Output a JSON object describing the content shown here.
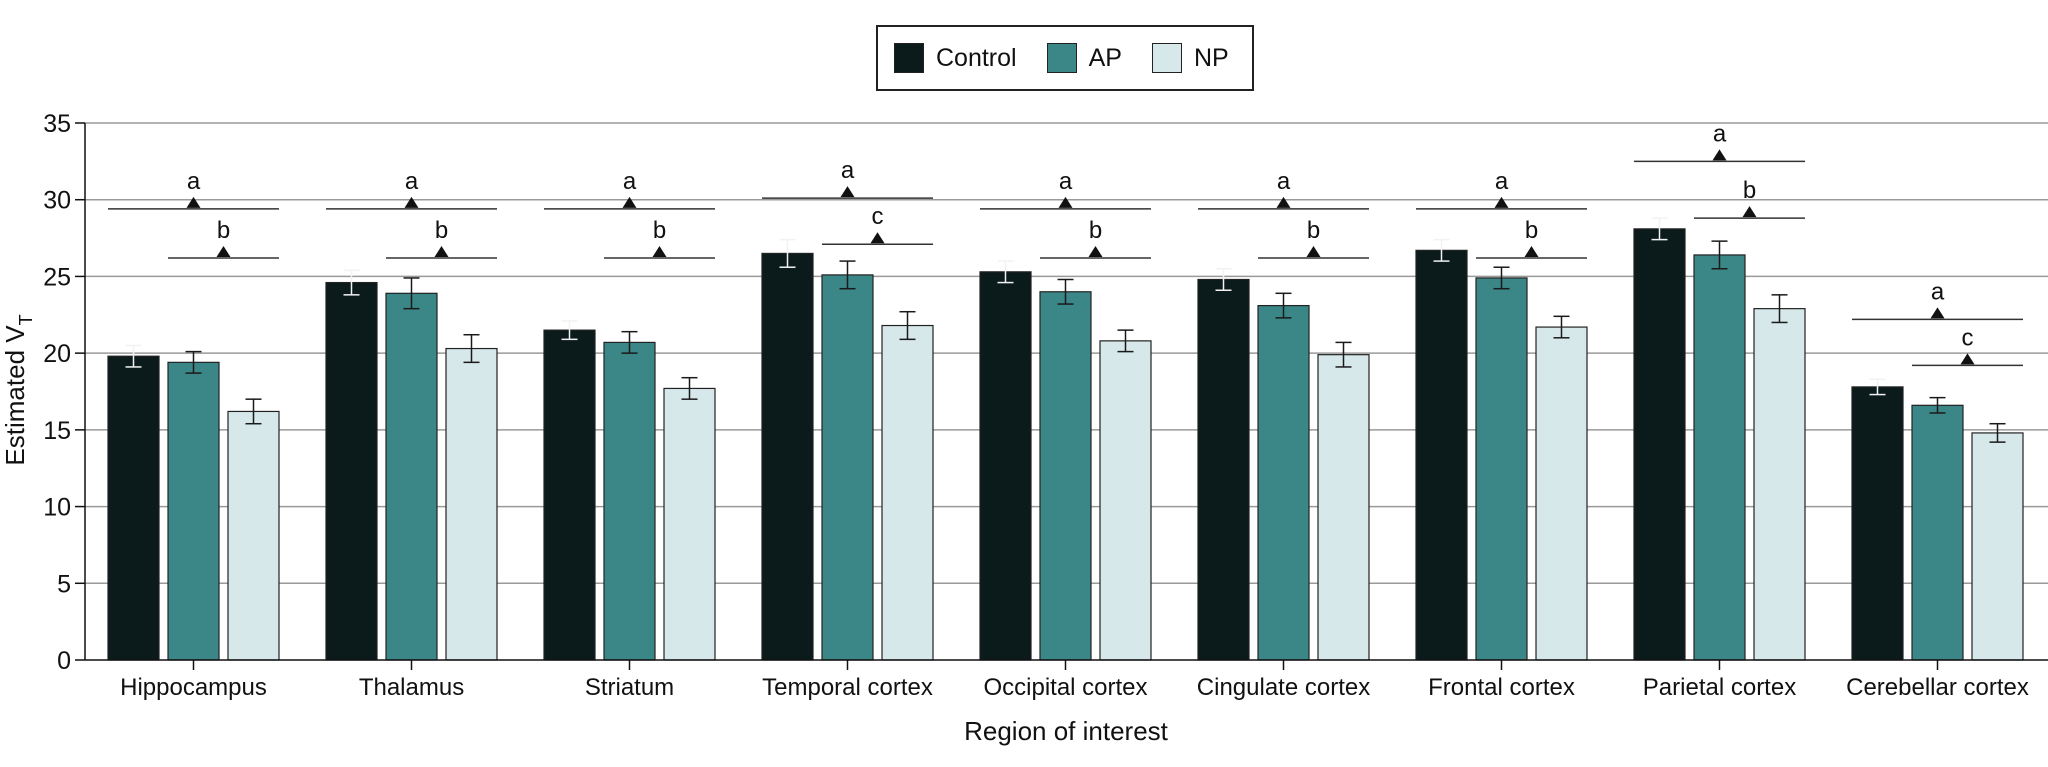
{
  "chart_data": {
    "type": "bar",
    "title": "",
    "xlabel": "Region of interest",
    "ylabel_main": "Estimated V",
    "ylabel_sub": "T",
    "ylim": [
      0,
      35
    ],
    "yticks": [
      0,
      5,
      10,
      15,
      20,
      25,
      30,
      35
    ],
    "categories": [
      "Hippocampus",
      "Thalamus",
      "Striatum",
      "Temporal cortex",
      "Occipital cortex",
      "Cingulate cortex",
      "Frontal cortex",
      "Parietal cortex",
      "Cerebellar cortex"
    ],
    "series": [
      {
        "name": "Control",
        "color": "#0b1a1b",
        "values": [
          19.8,
          24.6,
          21.5,
          26.5,
          25.3,
          24.8,
          26.7,
          28.1,
          17.8
        ],
        "errors": [
          0.7,
          0.8,
          0.6,
          0.9,
          0.7,
          0.7,
          0.7,
          0.7,
          0.5
        ]
      },
      {
        "name": "AP",
        "color": "#3b8686",
        "values": [
          19.4,
          23.9,
          20.7,
          25.1,
          24.0,
          23.1,
          24.9,
          26.4,
          16.6
        ],
        "errors": [
          0.7,
          1.0,
          0.7,
          0.9,
          0.8,
          0.8,
          0.7,
          0.9,
          0.5
        ]
      },
      {
        "name": "NP",
        "color": "#d6e8ea",
        "values": [
          16.2,
          20.3,
          17.7,
          21.8,
          20.8,
          19.9,
          21.7,
          22.9,
          14.8
        ],
        "errors": [
          0.8,
          0.9,
          0.7,
          0.9,
          0.7,
          0.8,
          0.7,
          0.9,
          0.6
        ]
      }
    ],
    "significance": [
      {
        "lines": [
          {
            "label": "a",
            "y": 29.4,
            "span": "control-np"
          },
          {
            "label": "b",
            "y": 26.2,
            "span": "ap-np"
          }
        ]
      },
      {
        "lines": [
          {
            "label": "a",
            "y": 29.4,
            "span": "control-np"
          },
          {
            "label": "b",
            "y": 26.2,
            "span": "ap-np"
          }
        ]
      },
      {
        "lines": [
          {
            "label": "a",
            "y": 29.4,
            "span": "control-np"
          },
          {
            "label": "b",
            "y": 26.2,
            "span": "ap-np"
          }
        ]
      },
      {
        "lines": [
          {
            "label": "a",
            "y": 30.1,
            "span": "control-np"
          },
          {
            "label": "c",
            "y": 27.1,
            "span": "ap-np"
          }
        ]
      },
      {
        "lines": [
          {
            "label": "a",
            "y": 29.4,
            "span": "control-np"
          },
          {
            "label": "b",
            "y": 26.2,
            "span": "ap-np"
          }
        ]
      },
      {
        "lines": [
          {
            "label": "a",
            "y": 29.4,
            "span": "control-np"
          },
          {
            "label": "b",
            "y": 26.2,
            "span": "ap-np"
          }
        ]
      },
      {
        "lines": [
          {
            "label": "a",
            "y": 29.4,
            "span": "control-np"
          },
          {
            "label": "b",
            "y": 26.2,
            "span": "ap-np"
          }
        ]
      },
      {
        "lines": [
          {
            "label": "a",
            "y": 32.5,
            "span": "control-np"
          },
          {
            "label": "b",
            "y": 28.8,
            "span": "ap-np"
          }
        ]
      },
      {
        "lines": [
          {
            "label": "a",
            "y": 22.2,
            "span": "control-np"
          },
          {
            "label": "c",
            "y": 19.2,
            "span": "ap-np"
          }
        ]
      }
    ],
    "legend": {
      "placement": "top-center"
    },
    "grid": true
  }
}
